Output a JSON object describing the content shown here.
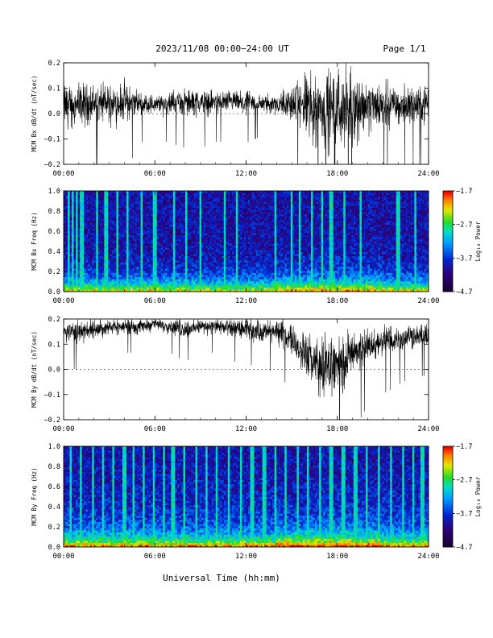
{
  "header": {
    "title": "2023/11/08  00:00−24:00 UT",
    "page": "Page 1/1"
  },
  "footer": {
    "xlabel": "Universal Time (hh:mm)"
  },
  "chart_data": [
    {
      "type": "line",
      "panel": "MCM Bx dB/dt",
      "ylabel": "MCM Bx dB/dt (nT/sec)",
      "ylim": [
        -0.2,
        0.2
      ],
      "yticks": [
        0.2,
        0.1,
        0.0,
        -0.1,
        -0.2
      ],
      "ytick_labels": [
        "0.2",
        "0.1",
        "0.0",
        "−0.1",
        "−0.2"
      ],
      "xlim": [
        0,
        24
      ],
      "xticks": [
        "00:00",
        "06:00",
        "12:00",
        "18:00",
        "24:00"
      ],
      "envelope": {
        "hours": [
          0,
          1,
          2,
          3,
          4,
          5,
          6,
          7,
          8,
          9,
          10,
          11,
          12,
          13,
          14,
          15,
          16,
          17,
          18,
          19,
          20,
          21,
          22,
          23,
          24
        ],
        "center": [
          0.03,
          0.035,
          0.04,
          0.04,
          0.045,
          0.04,
          0.035,
          0.04,
          0.045,
          0.045,
          0.045,
          0.045,
          0.04,
          0.04,
          0.04,
          0.04,
          0.03,
          0.02,
          0.02,
          0.025,
          0.03,
          0.035,
          0.035,
          0.035,
          0.035
        ],
        "amplitude": [
          0.13,
          0.11,
          0.09,
          0.1,
          0.11,
          0.06,
          0.05,
          0.06,
          0.07,
          0.07,
          0.06,
          0.06,
          0.06,
          0.05,
          0.06,
          0.09,
          0.17,
          0.21,
          0.21,
          0.18,
          0.14,
          0.12,
          0.1,
          0.09,
          0.09
        ]
      }
    },
    {
      "type": "heatmap",
      "panel": "MCM Bx Freq",
      "ylabel": "MCM Bx Freq (Hz)",
      "ylim": [
        0,
        1.0
      ],
      "yticks": [
        0.0,
        0.2,
        0.4,
        0.6,
        0.8,
        1.0
      ],
      "ytick_labels": [
        "0.0",
        "0.2",
        "0.4",
        "0.6",
        "0.8",
        "1.0"
      ],
      "xlim": [
        0,
        24
      ],
      "xticks": [
        "00:00",
        "06:00",
        "12:00",
        "18:00",
        "24:00"
      ],
      "colorbar": {
        "label": "Log₁₀ Power",
        "range": [
          -4.7,
          -1.7
        ],
        "ticks": [
          "−1.7",
          "−2.7",
          "−3.7",
          "−4.7"
        ]
      },
      "bright_stripe_hours": [
        0.3,
        0.6,
        0.9,
        1.2,
        2.2,
        2.8,
        3.5,
        4.2,
        5.1,
        6.0,
        7.3,
        8.1,
        9.0,
        10.6,
        11.4,
        13.9,
        15.0,
        15.5,
        16.3,
        17.0,
        17.6,
        18.5,
        19.5,
        22.0,
        23.1
      ]
    },
    {
      "type": "line",
      "panel": "MCM By dB/dt",
      "ylabel": "MCM By dB/dt (nT/sec)",
      "ylim": [
        -0.2,
        0.2
      ],
      "yticks": [
        0.2,
        0.1,
        0.0,
        -0.1,
        -0.2
      ],
      "ytick_labels": [
        "0.2",
        "0.1",
        "0.0",
        "−0.1",
        "−0.2"
      ],
      "xlim": [
        0,
        24
      ],
      "xticks": [
        "00:00",
        "06:00",
        "12:00",
        "18:00",
        "24:00"
      ],
      "envelope": {
        "hours": [
          0,
          1,
          2,
          3,
          4,
          5,
          6,
          7,
          8,
          9,
          10,
          11,
          12,
          13,
          14,
          15,
          16,
          17,
          18,
          19,
          20,
          21,
          22,
          23,
          24
        ],
        "center": [
          0.15,
          0.15,
          0.16,
          0.17,
          0.17,
          0.17,
          0.18,
          0.17,
          0.16,
          0.17,
          0.17,
          0.16,
          0.16,
          0.15,
          0.15,
          0.12,
          0.05,
          0.0,
          0.02,
          0.06,
          0.09,
          0.11,
          0.12,
          0.13,
          0.13
        ],
        "amplitude": [
          0.05,
          0.06,
          0.05,
          0.04,
          0.04,
          0.04,
          0.03,
          0.04,
          0.05,
          0.04,
          0.04,
          0.05,
          0.05,
          0.06,
          0.06,
          0.08,
          0.12,
          0.17,
          0.16,
          0.12,
          0.09,
          0.08,
          0.07,
          0.06,
          0.06
        ]
      }
    },
    {
      "type": "heatmap",
      "panel": "MCM By Freq",
      "ylabel": "MCM By Freq (Hz)",
      "ylim": [
        0,
        1.0
      ],
      "yticks": [
        0.0,
        0.2,
        0.4,
        0.6,
        0.8,
        1.0
      ],
      "ytick_labels": [
        "0.0",
        "0.2",
        "0.4",
        "0.6",
        "0.8",
        "1.0"
      ],
      "xlim": [
        0,
        24
      ],
      "xticks": [
        "00:00",
        "06:00",
        "12:00",
        "18:00",
        "24:00"
      ],
      "colorbar": {
        "label": "Log₁₀ Power",
        "range": [
          -4.7,
          -1.7
        ],
        "ticks": [
          "−1.7",
          "−2.7",
          "−3.7",
          "−4.7"
        ]
      },
      "bright_stripe_hours": [
        0.5,
        1.1,
        1.9,
        2.6,
        3.3,
        4.0,
        4.6,
        5.3,
        5.9,
        6.6,
        7.2,
        7.9,
        8.7,
        9.4,
        10.1,
        10.9,
        11.7,
        12.4,
        13.2,
        13.9,
        14.6,
        15.4,
        16.1,
        16.9,
        17.6,
        18.4,
        19.2,
        19.9,
        20.7,
        21.5,
        22.3,
        23.0,
        23.6
      ]
    }
  ]
}
